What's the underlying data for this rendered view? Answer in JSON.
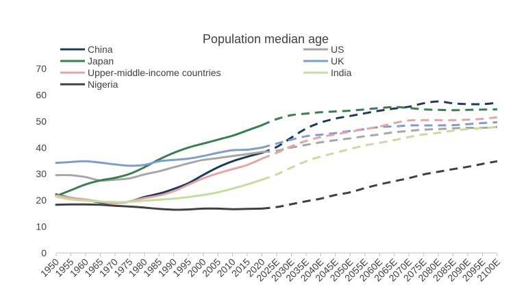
{
  "chart_data": {
    "type": "line",
    "title": "Population median age",
    "xlabel": "",
    "ylabel": "",
    "ylim": [
      0,
      70
    ],
    "yticks": [
      0,
      10,
      20,
      30,
      40,
      50,
      60,
      70
    ],
    "grid": false,
    "legend_position": "top",
    "x": [
      "1950",
      "1955",
      "1960",
      "1965",
      "1970",
      "1975",
      "1980",
      "1985",
      "1990",
      "1995",
      "2000",
      "2005",
      "2010",
      "2015",
      "2020",
      "2025E",
      "2030E",
      "2035E",
      "2040E",
      "2045E",
      "2050E",
      "2055E",
      "2060E",
      "2065E",
      "2070E",
      "2075E",
      "2080E",
      "2085E",
      "2090E",
      "2095E",
      "2100E"
    ],
    "projection_start": "2020",
    "series": [
      {
        "name": "China",
        "color": "#1f3a57",
        "values": [
          22.2,
          21.0,
          20.1,
          19.2,
          18.9,
          19.5,
          21.2,
          22.5,
          24.3,
          26.5,
          29.6,
          32.5,
          34.8,
          36.5,
          38.0,
          40.2,
          43.8,
          47.2,
          49.5,
          51.0,
          52.0,
          53.0,
          54.0,
          54.8,
          55.5,
          56.8,
          57.5,
          56.8,
          56.5,
          56.5,
          57.0
        ]
      },
      {
        "name": "US",
        "color": "#a6a6a6",
        "values": [
          29.5,
          29.5,
          28.8,
          27.5,
          27.8,
          28.3,
          29.8,
          31.0,
          32.5,
          34.0,
          35.3,
          36.0,
          36.8,
          37.5,
          38.3,
          38.8,
          40.0,
          41.0,
          42.0,
          42.8,
          43.5,
          44.3,
          45.0,
          45.8,
          46.3,
          46.8,
          47.0,
          47.3,
          47.5,
          47.5,
          47.8
        ]
      },
      {
        "name": "Japan",
        "color": "#3a7d4f",
        "values": [
          21.6,
          23.8,
          26.0,
          27.5,
          28.5,
          30.0,
          32.5,
          35.5,
          38.0,
          40.0,
          41.5,
          43.0,
          44.5,
          46.5,
          48.5,
          50.8,
          52.3,
          52.9,
          53.4,
          53.7,
          54.0,
          54.5,
          55.0,
          55.4,
          55.0,
          54.5,
          54.3,
          54.2,
          54.3,
          54.4,
          54.5
        ]
      },
      {
        "name": "UK",
        "color": "#7f9ccb",
        "values": [
          34.2,
          34.5,
          34.8,
          34.3,
          33.6,
          33.1,
          33.4,
          34.8,
          35.3,
          35.8,
          36.8,
          38.0,
          39.0,
          39.2,
          40.0,
          41.5,
          43.0,
          44.3,
          44.9,
          45.5,
          46.3,
          47.0,
          47.8,
          48.0,
          48.4,
          48.4,
          48.4,
          48.5,
          48.9,
          49.3,
          49.6
        ]
      },
      {
        "name": "Upper-middle-income countries",
        "color": "#e3a6a4",
        "values": [
          21.8,
          21.0,
          20.3,
          19.5,
          18.8,
          19.6,
          20.8,
          21.8,
          23.4,
          25.9,
          28.3,
          30.2,
          31.8,
          33.4,
          35.8,
          38.0,
          40.5,
          42.5,
          44.0,
          45.0,
          46.0,
          47.0,
          48.0,
          49.3,
          50.3,
          50.4,
          50.4,
          50.4,
          50.6,
          50.9,
          51.5
        ]
      },
      {
        "name": "India",
        "color": "#c5dea0",
        "values": [
          21.3,
          20.3,
          19.8,
          19.5,
          19.3,
          19.4,
          19.8,
          20.2,
          20.6,
          21.2,
          22.0,
          23.0,
          24.4,
          26.0,
          27.8,
          29.8,
          32.4,
          34.8,
          36.6,
          38.0,
          39.5,
          40.8,
          41.8,
          42.8,
          44.0,
          45.0,
          45.6,
          46.4,
          47.0,
          47.4,
          47.7
        ]
      },
      {
        "name": "Nigeria",
        "color": "#404040",
        "values": [
          18.3,
          18.4,
          18.4,
          18.3,
          17.9,
          17.6,
          17.2,
          16.7,
          16.4,
          16.5,
          16.8,
          16.8,
          16.6,
          16.7,
          16.8,
          17.4,
          18.5,
          19.6,
          20.6,
          22.0,
          23.0,
          24.6,
          26.0,
          27.2,
          28.4,
          29.8,
          30.8,
          31.8,
          32.7,
          33.8,
          34.8
        ]
      }
    ],
    "legend_layout": [
      {
        "series": "China",
        "col": 0,
        "row": 0
      },
      {
        "series": "US",
        "col": 1,
        "row": 0
      },
      {
        "series": "Japan",
        "col": 0,
        "row": 1
      },
      {
        "series": "UK",
        "col": 1,
        "row": 1
      },
      {
        "series": "Upper-middle-income countries",
        "col": 0,
        "row": 2
      },
      {
        "series": "India",
        "col": 1,
        "row": 2
      },
      {
        "series": "Nigeria",
        "col": 0,
        "row": 3
      }
    ]
  }
}
